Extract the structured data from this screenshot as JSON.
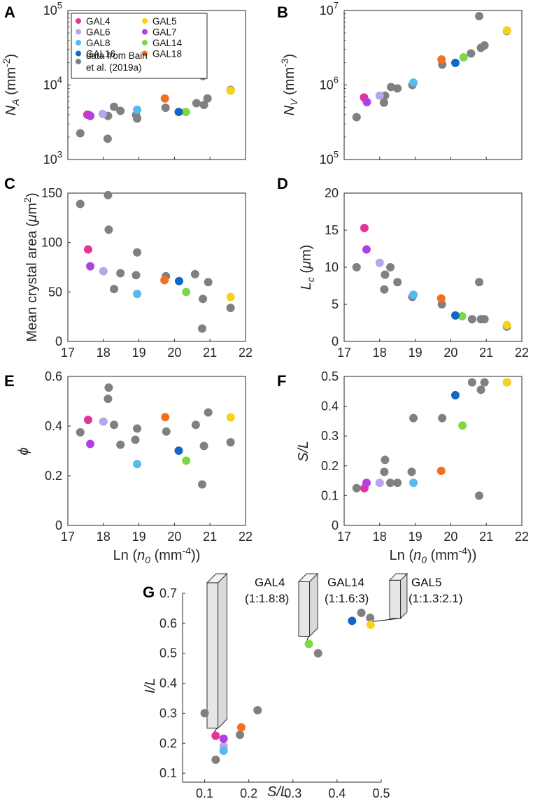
{
  "legend": {
    "items": [
      {
        "name": "GAL4",
        "color": "#e2359c"
      },
      {
        "name": "GAL5",
        "color": "#f6d21a"
      },
      {
        "name": "GAL6",
        "color": "#b7a6ea"
      },
      {
        "name": "GAL7",
        "color": "#b041e0"
      },
      {
        "name": "GAL8",
        "color": "#56b9f2"
      },
      {
        "name": "GAL14",
        "color": "#7ed845"
      },
      {
        "name": "GAL16",
        "color": "#1367c6"
      },
      {
        "name": "GAL18",
        "color": "#f3701e"
      }
    ],
    "bain_label_line1": "data from Bain",
    "bain_label_line2": "et al. (2019a)",
    "bain_color": "#808080"
  },
  "chart_data": [
    {
      "id": "A",
      "panel_label": "A",
      "type": "scatter",
      "yscale": "log",
      "xlim": [
        17,
        22
      ],
      "ylim": [
        1000,
        100000
      ],
      "xticks": [
        "17",
        "18",
        "19",
        "20",
        "21",
        "22"
      ],
      "yticks": [
        {
          "base": "10",
          "exp": "3"
        },
        {
          "base": "10",
          "exp": "4"
        },
        {
          "base": "10",
          "exp": "5"
        }
      ],
      "ylabel": {
        "main": "N",
        "sub": "A",
        "unit": " (mm",
        "sup": "-2",
        "close": ")"
      },
      "xlabel": "",
      "bain": [
        [
          17.35,
          2250
        ],
        [
          17.6,
          3950
        ],
        [
          18.12,
          1900
        ],
        [
          18.13,
          3850
        ],
        [
          18.3,
          5100
        ],
        [
          18.48,
          4500
        ],
        [
          18.92,
          3950
        ],
        [
          18.95,
          3550
        ],
        [
          19.75,
          4950
        ],
        [
          20.62,
          5700
        ],
        [
          20.8,
          13200
        ],
        [
          20.83,
          5400
        ],
        [
          20.93,
          6600
        ],
        [
          21.58,
          8600
        ]
      ],
      "gal": {
        "GAL4": [
          [
            17.55,
            4000
          ]
        ],
        "GAL5": [
          [
            21.58,
            8400
          ]
        ],
        "GAL6": [
          [
            17.98,
            4100
          ]
        ],
        "GAL7": [
          [
            17.63,
            3850
          ]
        ],
        "GAL8": [
          [
            18.95,
            4650
          ]
        ],
        "GAL14": [
          [
            20.32,
            4350
          ]
        ],
        "GAL16": [
          [
            20.12,
            4350
          ]
        ],
        "GAL18": [
          [
            19.73,
            6600
          ]
        ]
      }
    },
    {
      "id": "B",
      "panel_label": "B",
      "type": "scatter",
      "yscale": "log",
      "xlim": [
        17,
        22
      ],
      "ylim": [
        100000,
        10000000
      ],
      "xticks": [
        "17",
        "18",
        "19",
        "20",
        "21",
        "22"
      ],
      "yticks": [
        {
          "base": "10",
          "exp": "5"
        },
        {
          "base": "10",
          "exp": "6"
        },
        {
          "base": "10",
          "exp": "7"
        }
      ],
      "ylabel": {
        "main": "N",
        "sub": "V",
        "unit": " (mm",
        "sup": "-3",
        "close": ")"
      },
      "xlabel": "",
      "bain": [
        [
          17.35,
          370000
        ],
        [
          18.12,
          580000
        ],
        [
          18.15,
          720000
        ],
        [
          18.32,
          940000
        ],
        [
          18.5,
          900000
        ],
        [
          18.92,
          1000000
        ],
        [
          19.76,
          1880000
        ],
        [
          20.57,
          2650000
        ],
        [
          20.8,
          8400000
        ],
        [
          20.85,
          3150000
        ],
        [
          20.95,
          3400000
        ],
        [
          21.58,
          5300000
        ]
      ],
      "gal": {
        "GAL4": [
          [
            17.56,
            680000
          ]
        ],
        "GAL5": [
          [
            21.58,
            5400000
          ]
        ],
        "GAL6": [
          [
            18.0,
            720000
          ]
        ],
        "GAL7": [
          [
            17.64,
            590000
          ]
        ],
        "GAL8": [
          [
            18.95,
            1080000
          ]
        ],
        "GAL14": [
          [
            20.36,
            2350000
          ]
        ],
        "GAL16": [
          [
            20.13,
            1980000
          ]
        ],
        "GAL18": [
          [
            19.74,
            2200000
          ]
        ]
      }
    },
    {
      "id": "C",
      "panel_label": "C",
      "type": "scatter",
      "yscale": "linear",
      "xlim": [
        17,
        22
      ],
      "ylim": [
        0,
        150
      ],
      "xticks": [
        "17",
        "18",
        "19",
        "20",
        "21",
        "22"
      ],
      "yticks": [
        "0",
        "50",
        "100",
        "150"
      ],
      "ylabel": {
        "main": "Mean crystal area (",
        "mu": "μ",
        "unit": "m",
        "sup": "2",
        "close": ")"
      },
      "xlabel": "",
      "bain": [
        [
          17.35,
          139
        ],
        [
          18.13,
          148
        ],
        [
          18.15,
          113
        ],
        [
          18.3,
          53
        ],
        [
          18.48,
          69
        ],
        [
          18.92,
          67
        ],
        [
          18.95,
          90
        ],
        [
          19.76,
          66
        ],
        [
          20.58,
          68
        ],
        [
          20.8,
          43
        ],
        [
          20.78,
          13
        ],
        [
          20.95,
          60
        ],
        [
          21.58,
          34
        ]
      ],
      "gal": {
        "GAL4": [
          [
            17.57,
            93
          ]
        ],
        "GAL5": [
          [
            21.58,
            45
          ]
        ],
        "GAL6": [
          [
            18.0,
            71
          ]
        ],
        "GAL7": [
          [
            17.63,
            76
          ]
        ],
        "GAL8": [
          [
            18.95,
            48
          ]
        ],
        "GAL14": [
          [
            20.33,
            50
          ]
        ],
        "GAL16": [
          [
            20.13,
            61
          ]
        ],
        "GAL18": [
          [
            19.72,
            62
          ]
        ]
      }
    },
    {
      "id": "D",
      "panel_label": "D",
      "type": "scatter",
      "yscale": "linear",
      "xlim": [
        17,
        22
      ],
      "ylim": [
        0,
        20
      ],
      "xticks": [
        "17",
        "18",
        "19",
        "20",
        "21",
        "22"
      ],
      "yticks": [
        "0",
        "5",
        "10",
        "15",
        "20"
      ],
      "ylabel": {
        "main": "L",
        "sub": "c",
        "unit": " (",
        "mu": "μ",
        "unit2": "m)"
      },
      "xlabel": "",
      "bain": [
        [
          17.35,
          10.0
        ],
        [
          18.13,
          7.0
        ],
        [
          18.15,
          9.0
        ],
        [
          18.3,
          10.0
        ],
        [
          18.5,
          8.0
        ],
        [
          18.92,
          6.0
        ],
        [
          19.75,
          5.0
        ],
        [
          20.6,
          3.0
        ],
        [
          20.8,
          8.0
        ],
        [
          20.85,
          3.0
        ],
        [
          20.95,
          3.0
        ],
        [
          21.58,
          2.0
        ]
      ],
      "gal": {
        "GAL4": [
          [
            17.57,
            15.3
          ]
        ],
        "GAL5": [
          [
            21.58,
            2.2
          ]
        ],
        "GAL6": [
          [
            18.0,
            10.6
          ]
        ],
        "GAL7": [
          [
            17.63,
            12.4
          ]
        ],
        "GAL8": [
          [
            18.95,
            6.3
          ]
        ],
        "GAL14": [
          [
            20.32,
            3.4
          ]
        ],
        "GAL16": [
          [
            20.13,
            3.5
          ]
        ],
        "GAL18": [
          [
            19.73,
            5.8
          ]
        ]
      }
    },
    {
      "id": "E",
      "panel_label": "E",
      "type": "scatter",
      "yscale": "linear",
      "xlim": [
        17,
        22
      ],
      "ylim": [
        0,
        0.6
      ],
      "xticks": [
        "17",
        "18",
        "19",
        "20",
        "21",
        "22"
      ],
      "yticks": [
        "0",
        "0.2",
        "0.4",
        "0.6"
      ],
      "ylabel": {
        "main": "ϕ"
      },
      "xlabel": "Ln (n0 (mm-4))",
      "bain": [
        [
          17.35,
          0.375
        ],
        [
          18.13,
          0.51
        ],
        [
          18.15,
          0.555
        ],
        [
          18.3,
          0.405
        ],
        [
          18.48,
          0.325
        ],
        [
          18.9,
          0.345
        ],
        [
          18.95,
          0.39
        ],
        [
          19.77,
          0.378
        ],
        [
          20.6,
          0.405
        ],
        [
          20.78,
          0.165
        ],
        [
          20.83,
          0.32
        ],
        [
          20.95,
          0.455
        ],
        [
          21.58,
          0.335
        ]
      ],
      "gal": {
        "GAL4": [
          [
            17.57,
            0.425
          ]
        ],
        "GAL5": [
          [
            21.58,
            0.435
          ]
        ],
        "GAL6": [
          [
            18.0,
            0.418
          ]
        ],
        "GAL7": [
          [
            17.63,
            0.328
          ]
        ],
        "GAL8": [
          [
            18.95,
            0.247
          ]
        ],
        "GAL14": [
          [
            20.33,
            0.261
          ]
        ],
        "GAL16": [
          [
            20.12,
            0.301
          ]
        ],
        "GAL18": [
          [
            19.74,
            0.436
          ]
        ]
      }
    },
    {
      "id": "F",
      "panel_label": "F",
      "type": "scatter",
      "yscale": "linear",
      "xlim": [
        17,
        22
      ],
      "ylim": [
        0,
        0.5
      ],
      "xticks": [
        "17",
        "18",
        "19",
        "20",
        "21",
        "22"
      ],
      "yticks": [
        "0",
        "0.1",
        "0.2",
        "0.3",
        "0.4",
        "0.5"
      ],
      "ylabel": {
        "main": "S/L"
      },
      "xlabel": "Ln (n0 (mm-4))",
      "bain": [
        [
          17.35,
          0.125
        ],
        [
          18.13,
          0.18
        ],
        [
          18.15,
          0.22
        ],
        [
          18.3,
          0.143
        ],
        [
          18.5,
          0.143
        ],
        [
          18.9,
          0.18
        ],
        [
          18.95,
          0.36
        ],
        [
          19.76,
          0.36
        ],
        [
          20.6,
          0.48
        ],
        [
          20.8,
          0.1
        ],
        [
          20.85,
          0.455
        ],
        [
          20.95,
          0.48
        ],
        [
          21.58,
          0.48
        ]
      ],
      "gal": {
        "GAL4": [
          [
            17.57,
            0.125
          ]
        ],
        "GAL5": [
          [
            21.58,
            0.48
          ]
        ],
        "GAL6": [
          [
            18.0,
            0.143
          ]
        ],
        "GAL7": [
          [
            17.63,
            0.143
          ]
        ],
        "GAL8": [
          [
            18.95,
            0.143
          ]
        ],
        "GAL14": [
          [
            20.33,
            0.335
          ]
        ],
        "GAL16": [
          [
            20.13,
            0.437
          ]
        ],
        "GAL18": [
          [
            19.73,
            0.183
          ]
        ]
      }
    },
    {
      "id": "G",
      "panel_label": "G",
      "type": "scatter",
      "yscale": "linear",
      "xlim": [
        0.05,
        0.5
      ],
      "ylim": [
        0.07,
        0.7
      ],
      "xticks": [
        "0.1",
        "0.2",
        "0.3",
        "0.4",
        "0.5"
      ],
      "yticks": [
        "0.1",
        "0.2",
        "0.3",
        "0.4",
        "0.5",
        "0.6",
        "0.7"
      ],
      "ylabel": {
        "main": "I/L"
      },
      "xlabel": "S/L",
      "bain": [
        [
          0.1,
          0.3
        ],
        [
          0.125,
          0.145
        ],
        [
          0.18,
          0.228
        ],
        [
          0.22,
          0.31
        ],
        [
          0.357,
          0.5
        ],
        [
          0.455,
          0.635
        ],
        [
          0.475,
          0.618
        ]
      ],
      "gal": {
        "GAL4": [
          [
            0.125,
            0.225
          ]
        ],
        "GAL5": [
          [
            0.476,
            0.595
          ]
        ],
        "GAL6": [
          [
            0.143,
            0.19
          ]
        ],
        "GAL7": [
          [
            0.143,
            0.215
          ]
        ],
        "GAL8": [
          [
            0.143,
            0.175
          ]
        ],
        "GAL14": [
          [
            0.336,
            0.531
          ]
        ],
        "GAL16": [
          [
            0.434,
            0.608
          ]
        ],
        "GAL18": [
          [
            0.183,
            0.253
          ]
        ]
      },
      "annotations": [
        {
          "name": "GAL4",
          "ratio": "(1:1.8:8)",
          "S": 1,
          "I": 1.8,
          "L": 8,
          "target": [
            0.125,
            0.225
          ]
        },
        {
          "name": "GAL14",
          "ratio": "(1:1.6:3)",
          "S": 1,
          "I": 1.6,
          "L": 3,
          "target": [
            0.336,
            0.531
          ]
        },
        {
          "name": "GAL5",
          "ratio": "(1:1.3:2.1)",
          "S": 1,
          "I": 1.3,
          "L": 2.1,
          "target": [
            0.476,
            0.595
          ]
        }
      ]
    }
  ]
}
